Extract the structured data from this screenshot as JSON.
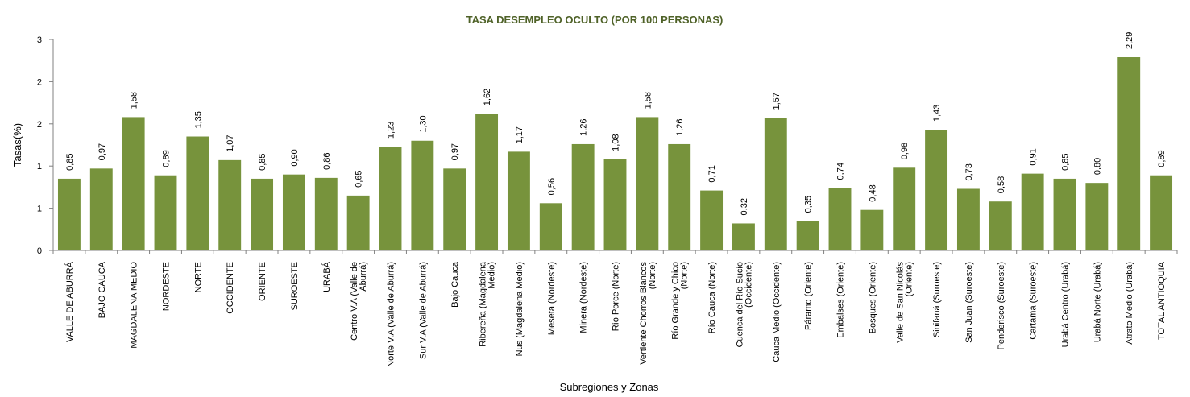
{
  "chart_data": {
    "type": "bar",
    "title": "TASA DESEMPLEO OCULTO (POR 100 PERSONAS)",
    "xlabel": "Subregiones y Zonas",
    "ylabel": "Tasas(%)",
    "ylim": [
      0,
      2.5
    ],
    "y_tick_labels": [
      "0",
      "1",
      "1",
      "2",
      "2",
      "3"
    ],
    "y_tick_values": [
      0,
      0.5,
      1.0,
      1.5,
      2.0,
      2.5
    ],
    "bar_color": "#77933c",
    "grid": false,
    "legend": "none",
    "categories": [
      [
        "VALLE DE ABURRÁ"
      ],
      [
        "BAJO CAUCA"
      ],
      [
        "MAGDALENA MEDIO"
      ],
      [
        "NORDESTE"
      ],
      [
        "NORTE"
      ],
      [
        "OCCIDENTE"
      ],
      [
        "ORIENTE"
      ],
      [
        "SUROESTE"
      ],
      [
        "URABÁ"
      ],
      [
        "Centro V.A (Valle de",
        "Aburrá)"
      ],
      [
        "Norte V.A (Valle de Aburrá)"
      ],
      [
        "Sur V.A (Valle de Aburrá)"
      ],
      [
        "Bajo Cauca"
      ],
      [
        "Ribereña  (Magdalena",
        "Medio)"
      ],
      [
        "Nus  (Magdalena Medio)"
      ],
      [
        "Meseta  (Nordeste)"
      ],
      [
        "Minera  (Nordeste)"
      ],
      [
        "Río Porce   (Norte)"
      ],
      [
        "Vertiente Chorros Blancos",
        "(Norte)"
      ],
      [
        "Río Grande y Chico",
        "(Norte)"
      ],
      [
        "Río Cauca  (Norte)"
      ],
      [
        "Cuenca del Río Sucio",
        "(Occidente)"
      ],
      [
        "Cauca Medio  (Occidente)"
      ],
      [
        "Páramo   (Oriente)"
      ],
      [
        "Embalses  (Oriente)"
      ],
      [
        "Bosques  (Oriente)"
      ],
      [
        "Valle de San Nicolás",
        "(Oriente)"
      ],
      [
        "Sinifaná  (Suroeste)"
      ],
      [
        "San Juan  (Suroeste)"
      ],
      [
        "Penderisco  (Suroeste)"
      ],
      [
        "Cartama  (Suroeste)"
      ],
      [
        "Urabá Centro  (Urabá)"
      ],
      [
        "Urabá Norte  (Urabá)"
      ],
      [
        "Atrato Medio  (Urabá)"
      ],
      [
        "TOTAL ANTIOQUIA"
      ]
    ],
    "values": [
      0.85,
      0.97,
      1.58,
      0.89,
      1.35,
      1.07,
      0.85,
      0.9,
      0.86,
      0.65,
      1.23,
      1.3,
      0.97,
      1.62,
      1.17,
      0.56,
      1.26,
      1.08,
      1.58,
      1.26,
      0.71,
      0.32,
      1.57,
      0.35,
      0.74,
      0.48,
      0.98,
      1.43,
      0.73,
      0.58,
      0.91,
      0.85,
      0.8,
      2.29,
      0.89
    ],
    "value_labels": [
      "0,85",
      "0,97",
      "1,58",
      "0,89",
      "1,35",
      "1,07",
      "0,85",
      "0,90",
      "0,86",
      "0,65",
      "1,23",
      "1,30",
      "0,97",
      "1,62",
      "1,17",
      "0,56",
      "1,26",
      "1,08",
      "1,58",
      "1,26",
      "0,71",
      "0,32",
      "1,57",
      "0,35",
      "0,74",
      "0,48",
      "0,98",
      "1,43",
      "0,73",
      "0,58",
      "0,91",
      "0,85",
      "0,80",
      "2,29",
      "0,89"
    ]
  }
}
